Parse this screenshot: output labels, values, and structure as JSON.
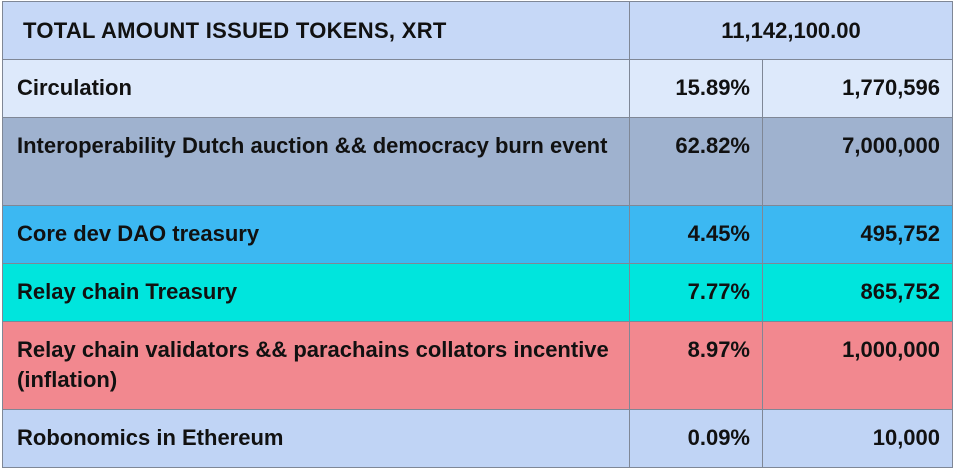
{
  "table": {
    "header": {
      "title": "TOTAL AMOUNT ISSUED TOKENS, XRT",
      "total": "11,142,100.00",
      "bg": "#c6d8f7"
    },
    "rows": [
      {
        "label": "Circulation",
        "percent": "15.89%",
        "amount": "1,770,596",
        "bg": "#dde9fb"
      },
      {
        "label": "Interoperability Dutch auction && democracy burn event",
        "percent": "62.82%",
        "amount": "7,000,000",
        "bg": "#9fb2cf"
      },
      {
        "label": "Core dev DAO treasury",
        "percent": "4.45%",
        "amount": "495,752",
        "bg": "#3cb8f2"
      },
      {
        "label": "Relay chain Treasury",
        "percent": "7.77%",
        "amount": "865,752",
        "bg": "#00e5dd"
      },
      {
        "label": "Relay chain validators && parachains collators incentive (inflation)",
        "percent": "8.97%",
        "amount": "1,000,000",
        "bg": "#f2888f"
      },
      {
        "label": "Robonomics in Ethereum",
        "percent": "0.09%",
        "amount": "10,000",
        "bg": "#c0d4f5"
      }
    ]
  }
}
